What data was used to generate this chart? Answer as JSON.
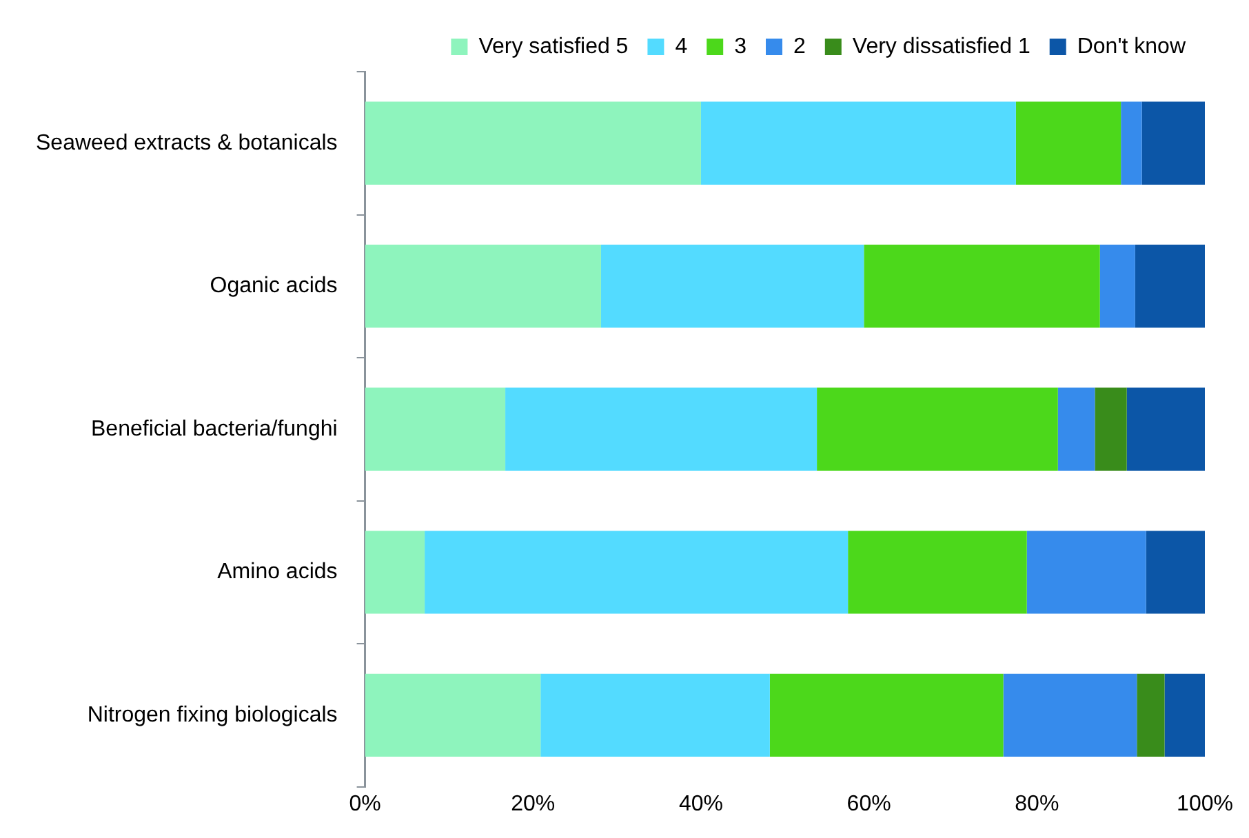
{
  "chart_data": {
    "type": "bar",
    "orientation": "horizontal",
    "stacked": true,
    "categories": [
      "Seaweed extracts & botanicals",
      "Oganic acids",
      "Beneficial bacteria/funghi",
      "Amino acids",
      "Nitrogen fixing biologicals"
    ],
    "series": [
      {
        "name": "Very satisfied 5",
        "color": "#8ef4bd",
        "values": [
          40,
          28.1,
          16.7,
          7.1,
          20.9
        ]
      },
      {
        "name": "4",
        "color": "#53dbff",
        "values": [
          37.5,
          31.3,
          37.1,
          50.4,
          27.3
        ]
      },
      {
        "name": "3",
        "color": "#4cd81b",
        "values": [
          12.5,
          28.1,
          28.7,
          21.3,
          27.8
        ]
      },
      {
        "name": "2",
        "color": "#368bec",
        "values": [
          2.5,
          4.2,
          4.4,
          14.2,
          15.9
        ]
      },
      {
        "name": "Very dissatisfied 1",
        "color": "#398c1b",
        "values": [
          0,
          0,
          3.8,
          0,
          3.3
        ]
      },
      {
        "name": "Don't know",
        "color": "#0c56a7",
        "values": [
          7.5,
          8.3,
          9.3,
          7,
          4.8
        ]
      }
    ],
    "xlim": [
      0,
      100
    ],
    "xticks": [
      {
        "value": 0,
        "label": "0%"
      },
      {
        "value": 20,
        "label": "20%"
      },
      {
        "value": 40,
        "label": "40%"
      },
      {
        "value": 60,
        "label": "60%"
      },
      {
        "value": 80,
        "label": "80%"
      },
      {
        "value": 100,
        "label": "100%"
      }
    ],
    "grid": false,
    "legend": "top right"
  }
}
